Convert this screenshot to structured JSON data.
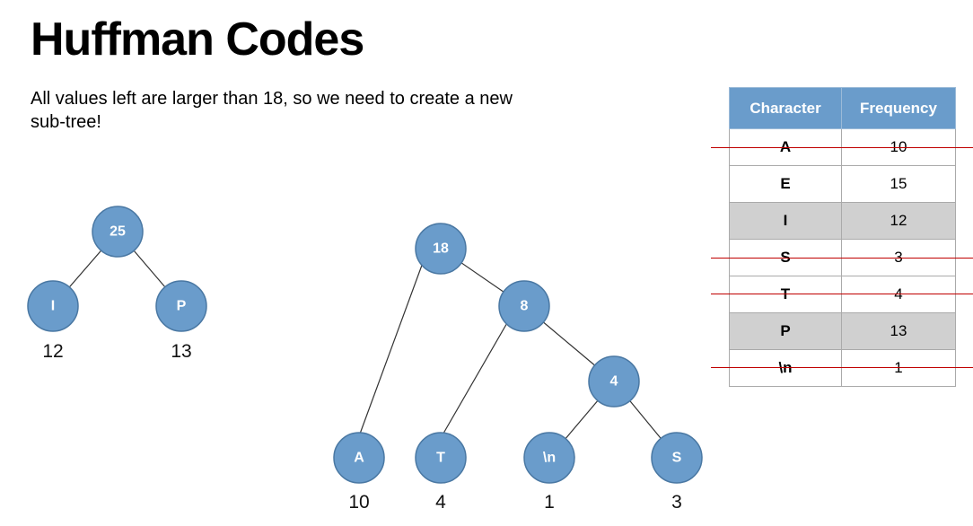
{
  "title": "Huffman Codes",
  "subtitle": "All values left are larger than 18, so we need to create a new sub-tree!",
  "tree_left": {
    "root": {
      "label": "25"
    },
    "left": {
      "label": "I",
      "weight": "12"
    },
    "right": {
      "label": "P",
      "weight": "13"
    }
  },
  "tree_right": {
    "root": {
      "label": "18"
    },
    "n8": {
      "label": "8"
    },
    "n4": {
      "label": "4"
    },
    "leaf_a": {
      "label": "A",
      "weight": "10"
    },
    "leaf_t": {
      "label": "T",
      "weight": "4"
    },
    "leaf_n": {
      "label": "\\n",
      "weight": "1"
    },
    "leaf_s": {
      "label": "S",
      "weight": "3"
    }
  },
  "table": {
    "headers": [
      "Character",
      "Frequency"
    ],
    "rows": [
      {
        "char": "A",
        "freq": "10",
        "struck": true,
        "shaded": false
      },
      {
        "char": "E",
        "freq": "15",
        "struck": false,
        "shaded": false
      },
      {
        "char": "I",
        "freq": "12",
        "struck": false,
        "shaded": true
      },
      {
        "char": "S",
        "freq": "3",
        "struck": true,
        "shaded": false
      },
      {
        "char": "T",
        "freq": "4",
        "struck": true,
        "shaded": false
      },
      {
        "char": "P",
        "freq": "13",
        "struck": false,
        "shaded": true
      },
      {
        "char": "\\n",
        "freq": "1",
        "struck": true,
        "shaded": false
      }
    ]
  },
  "colors": {
    "node_fill": "#6a9ccb",
    "header_fill": "#6a9ccb",
    "shaded_row": "#d0d0d0",
    "strike": "#c00000"
  }
}
